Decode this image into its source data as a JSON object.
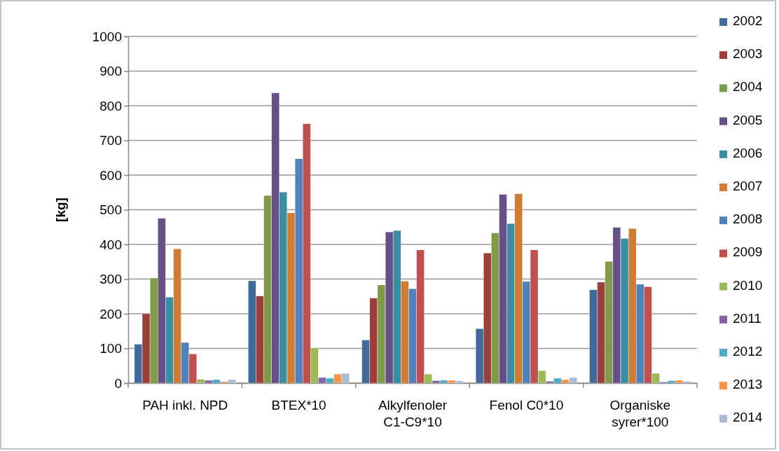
{
  "chart_data": {
    "type": "bar",
    "ylabel": "[kg]",
    "categories": [
      "PAH inkl. NPD",
      "BTEX*10",
      "Alkylfenoler C1-C9*10",
      "Fenol C0*10",
      "Organiske syrer*100"
    ],
    "series": [
      {
        "name": "2002",
        "color": "#3e6b9c",
        "values": [
          112,
          295,
          124,
          157,
          269
        ]
      },
      {
        "name": "2003",
        "color": "#9e3e3b",
        "values": [
          200,
          251,
          245,
          375,
          291
        ]
      },
      {
        "name": "2004",
        "color": "#7f9a48",
        "values": [
          303,
          541,
          283,
          433,
          351
        ]
      },
      {
        "name": "2005",
        "color": "#67508a",
        "values": [
          475,
          837,
          436,
          544,
          449
        ]
      },
      {
        "name": "2006",
        "color": "#3a8ea2",
        "values": [
          248,
          551,
          440,
          460,
          417
        ]
      },
      {
        "name": "2007",
        "color": "#cf7c35",
        "values": [
          387,
          491,
          294,
          546,
          446
        ]
      },
      {
        "name": "2008",
        "color": "#4f81bd",
        "values": [
          117,
          647,
          272,
          293,
          285
        ]
      },
      {
        "name": "2009",
        "color": "#c0504d",
        "values": [
          84,
          748,
          384,
          384,
          278
        ]
      },
      {
        "name": "2010",
        "color": "#9bbb59",
        "values": [
          11,
          101,
          26,
          36,
          28
        ]
      },
      {
        "name": "2011",
        "color": "#8064a2",
        "values": [
          8,
          16,
          7,
          5,
          3
        ]
      },
      {
        "name": "2012",
        "color": "#4bacc6",
        "values": [
          10,
          14,
          8,
          14,
          7
        ]
      },
      {
        "name": "2013",
        "color": "#f79646",
        "values": [
          4,
          26,
          8,
          10,
          8
        ]
      },
      {
        "name": "2014",
        "color": "#a9bad8",
        "values": [
          10,
          28,
          6,
          16,
          5
        ]
      }
    ],
    "ylim": [
      0,
      1000
    ],
    "yticks": [
      0,
      100,
      200,
      300,
      400,
      500,
      600,
      700,
      800,
      900,
      1000
    ],
    "grid": "y",
    "legend": "right"
  }
}
